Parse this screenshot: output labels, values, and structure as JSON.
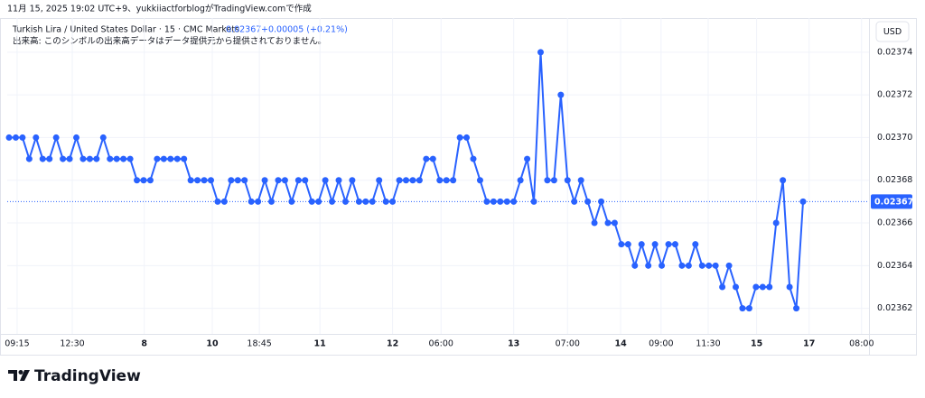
{
  "attribution": "11月 15, 2025 19:02 UTC+9、yukkiiactforblogがTradingView.comで作成",
  "currency": "USD",
  "logo": "TradingView",
  "chart_data": {
    "type": "line",
    "title": "Turkish Lira / United States Dollar · 15 · CMC Markets",
    "annotations": [
      "0.02367",
      "+0.00005 (+0.21%)"
    ],
    "subtitle": "出来高: このシンボルの出来高データはデータ提供元から提供されておりません。",
    "color": "#2962ff",
    "values": [
      0.0237,
      0.0237,
      0.0237,
      0.02369,
      0.0237,
      0.02369,
      0.02369,
      0.0237,
      0.02369,
      0.02369,
      0.0237,
      0.02369,
      0.02369,
      0.02369,
      0.0237,
      0.02369,
      0.02369,
      0.02369,
      0.02369,
      0.02368,
      0.02368,
      0.02368,
      0.02369,
      0.02369,
      0.02369,
      0.02369,
      0.02369,
      0.02368,
      0.02368,
      0.02368,
      0.02368,
      0.02367,
      0.02367,
      0.02368,
      0.02368,
      0.02368,
      0.02367,
      0.02367,
      0.02368,
      0.02367,
      0.02368,
      0.02368,
      0.02367,
      0.02368,
      0.02368,
      0.02367,
      0.02367,
      0.02368,
      0.02367,
      0.02368,
      0.02367,
      0.02368,
      0.02367,
      0.02367,
      0.02367,
      0.02368,
      0.02367,
      0.02367,
      0.02368,
      0.02368,
      0.02368,
      0.02368,
      0.02369,
      0.02369,
      0.02368,
      0.02368,
      0.02368,
      0.0237,
      0.0237,
      0.02369,
      0.02368,
      0.02367,
      0.02367,
      0.02367,
      0.02367,
      0.02367,
      0.02368,
      0.02369,
      0.02367,
      0.02374,
      0.02368,
      0.02368,
      0.02372,
      0.02368,
      0.02367,
      0.02368,
      0.02367,
      0.02366,
      0.02367,
      0.02366,
      0.02366,
      0.02365,
      0.02365,
      0.02364,
      0.02365,
      0.02364,
      0.02365,
      0.02364,
      0.02365,
      0.02365,
      0.02364,
      0.02364,
      0.02365,
      0.02364,
      0.02364,
      0.02364,
      0.02363,
      0.02364,
      0.02363,
      0.02362,
      0.02362,
      0.02363,
      0.02363,
      0.02363,
      0.02366,
      0.02368,
      0.02363,
      0.02362,
      0.02367
    ],
    "xlim": [
      -0.27,
      127.8
    ],
    "xticks": [
      {
        "value": 1.2,
        "label": "09:15"
      },
      {
        "value": 9.4,
        "label": "12:30"
      },
      {
        "value": 20.1,
        "label": "8"
      },
      {
        "value": 30.2,
        "label": "10"
      },
      {
        "value": 37.2,
        "label": "18:45"
      },
      {
        "value": 46.2,
        "label": "11"
      },
      {
        "value": 57,
        "label": "12"
      },
      {
        "value": 64.2,
        "label": "06:00"
      },
      {
        "value": 75,
        "label": "13"
      },
      {
        "value": 83,
        "label": "07:00"
      },
      {
        "value": 90.9,
        "label": "14"
      },
      {
        "value": 96.9,
        "label": "09:00"
      },
      {
        "value": 103.9,
        "label": "11:30"
      },
      {
        "value": 111.1,
        "label": "15"
      },
      {
        "value": 118.9,
        "label": "17"
      },
      {
        "value": 126.7,
        "label": "08:00"
      }
    ],
    "ylim": [
      0.023608,
      0.023756
    ],
    "yticks": [
      0.02362,
      0.02364,
      0.02366,
      0.02368,
      {
        "value": 0.0237,
        "label": "0.02370"
      },
      0.02372,
      0.02374
    ],
    "grid": true
  }
}
